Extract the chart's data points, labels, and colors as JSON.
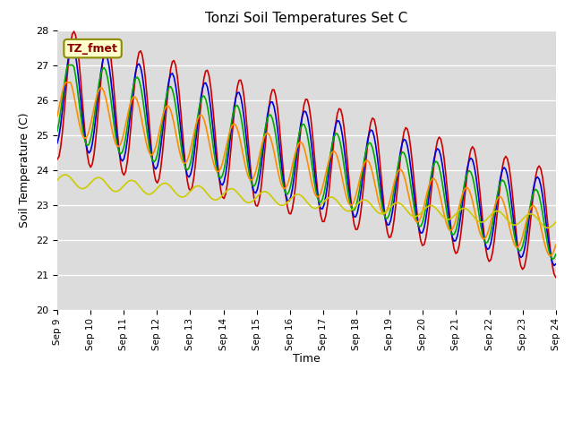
{
  "title": "Tonzi Soil Temperatures Set C",
  "xlabel": "Time",
  "ylabel": "Soil Temperature (C)",
  "ylim": [
    20.0,
    28.0
  ],
  "yticks": [
    20.0,
    21.0,
    22.0,
    23.0,
    24.0,
    25.0,
    26.0,
    27.0,
    28.0
  ],
  "plot_bg_color": "#dcdcdc",
  "legend_label": "TZ_fmet",
  "series": {
    "-2cm": {
      "color": "#cc0000",
      "linewidth": 1.2
    },
    "-4cm": {
      "color": "#0000dd",
      "linewidth": 1.2
    },
    "-8cm": {
      "color": "#00aa00",
      "linewidth": 1.2
    },
    "-16cm": {
      "color": "#ff8c00",
      "linewidth": 1.2
    },
    "-32cm": {
      "color": "#cccc00",
      "linewidth": 1.2
    }
  },
  "xtick_labels": [
    "Sep 9",
    "Sep 10",
    "Sep 11",
    "Sep 12",
    "Sep 13",
    "Sep 14",
    "Sep 15",
    "Sep 16",
    "Sep 17",
    "Sep 18",
    "Sep 19",
    "Sep 20",
    "Sep 21",
    "Sep 22",
    "Sep 23",
    "Sep 24"
  ]
}
